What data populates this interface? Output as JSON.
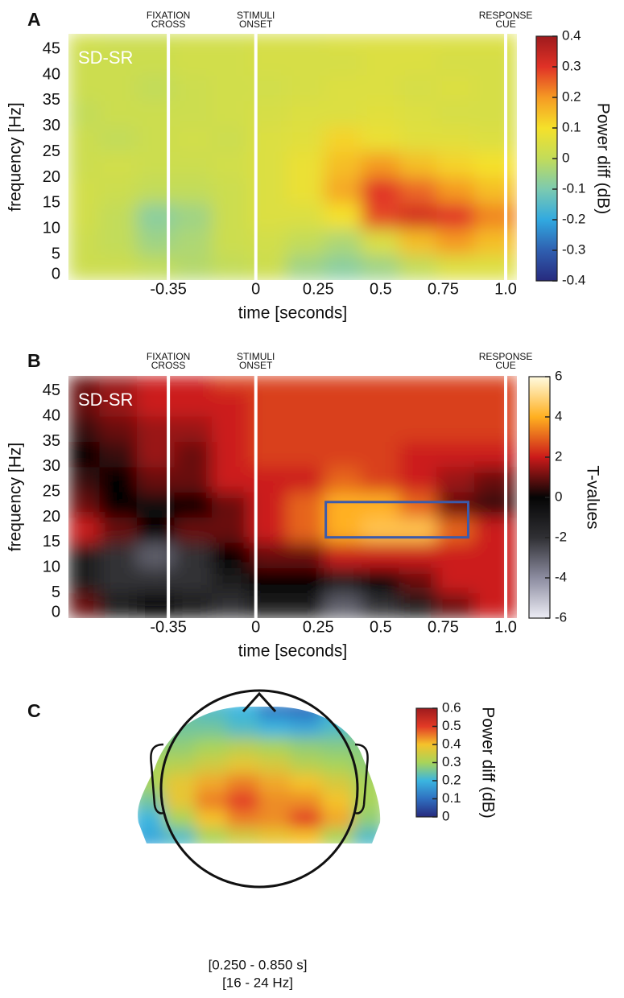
{
  "chart_data": [
    {
      "type": "heatmap",
      "panel": "A",
      "subtitle": "SD-SR",
      "xlabel": "time [seconds]",
      "ylabel": "frequency [Hz]",
      "xlim": [
        -0.75,
        1.045
      ],
      "ylim": [
        0,
        48
      ],
      "xticks": [
        -0.35,
        0,
        0.25,
        0.5,
        0.75,
        {
          "value": 1,
          "label": "1.0"
        }
      ],
      "yticks": [
        0,
        5,
        10,
        15,
        20,
        25,
        30,
        35,
        40,
        45
      ],
      "x": [
        -0.7,
        -0.55,
        -0.4,
        -0.25,
        -0.1,
        0.05,
        0.2,
        0.35,
        0.5,
        0.65,
        0.8,
        0.95
      ],
      "y": [
        2.5,
        7.5,
        12.5,
        17.5,
        22.5,
        27.5,
        32.5,
        37.5,
        42.5,
        47.5
      ],
      "z": [
        [
          0.02,
          0.02,
          0,
          -0.02,
          0,
          0.02,
          -0.05,
          -0.08,
          -0.05,
          0,
          0.05,
          0.05
        ],
        [
          0.02,
          0,
          -0.05,
          -0.03,
          0.02,
          0.03,
          0,
          -0.03,
          0.05,
          0.15,
          0.2,
          0.15
        ],
        [
          0.03,
          0,
          -0.08,
          -0.05,
          0.02,
          0.05,
          0.05,
          0.1,
          0.28,
          0.32,
          0.3,
          0.22
        ],
        [
          0.03,
          0.02,
          0,
          0,
          0.02,
          0.05,
          0.08,
          0.18,
          0.3,
          0.25,
          0.2,
          0.15
        ],
        [
          0.02,
          0.03,
          0.02,
          0.02,
          0.03,
          0.05,
          0.08,
          0.15,
          0.2,
          0.15,
          0.12,
          0.1
        ],
        [
          0.02,
          0,
          0.02,
          0.03,
          0.02,
          0.05,
          0.06,
          0.12,
          0.08,
          0.06,
          0.06,
          0.05
        ],
        [
          0,
          0.02,
          0.02,
          0.02,
          0.03,
          0.04,
          0.05,
          0.05,
          0.06,
          0.05,
          0.04,
          0.04
        ],
        [
          0.02,
          0.02,
          0,
          0.02,
          0.03,
          0.03,
          0.04,
          0.05,
          0.05,
          0.04,
          0.05,
          0.04
        ],
        [
          0.02,
          0.02,
          0.02,
          0.03,
          0.03,
          0.04,
          0.04,
          0.04,
          0.05,
          0.05,
          0.04,
          0.04
        ],
        [
          0.03,
          0.02,
          0.02,
          0.03,
          0.03,
          0.04,
          0.04,
          0.05,
          0.05,
          0.05,
          0.05,
          0.05
        ]
      ],
      "events": [
        {
          "x": -0.35,
          "label": [
            "FIXATION",
            "CROSS"
          ]
        },
        {
          "x": 0,
          "label": [
            "STIMULI",
            "ONSET"
          ]
        },
        {
          "x": 1,
          "label": [
            "RESPONSE",
            "CUE"
          ]
        }
      ],
      "colorbar": {
        "label": "Power diff (dB)",
        "clim": [
          -0.4,
          0.4
        ],
        "ticks": [
          -0.4,
          -0.3,
          -0.2,
          -0.1,
          0,
          0.1,
          0.2,
          0.3,
          0.4
        ],
        "colors": [
          "#272a7e",
          "#2f5fb0",
          "#31a9e0",
          "#7ccab0",
          "#c2dc5a",
          "#f5e12a",
          "#f59a24",
          "#e03226",
          "#9e1a1d"
        ]
      }
    },
    {
      "type": "heatmap",
      "panel": "B",
      "subtitle": "SD-SR",
      "xlabel": "time [seconds]",
      "ylabel": "frequency [Hz]",
      "xlim": [
        -0.75,
        1.045
      ],
      "ylim": [
        0,
        48
      ],
      "xticks": [
        -0.35,
        0,
        0.25,
        0.5,
        0.75,
        {
          "value": 1,
          "label": "1.0"
        }
      ],
      "yticks": [
        0,
        5,
        10,
        15,
        20,
        25,
        30,
        35,
        40,
        45
      ],
      "x": [
        -0.7,
        -0.55,
        -0.4,
        -0.25,
        -0.1,
        0.05,
        0.2,
        0.35,
        0.5,
        0.65,
        0.8,
        0.95
      ],
      "y": [
        2.5,
        7.5,
        12.5,
        17.5,
        22.5,
        27.5,
        32.5,
        37.5,
        42.5,
        47.5
      ],
      "z": [
        [
          1,
          -1,
          0,
          -1,
          -2,
          -1,
          -1,
          -3,
          -2,
          -1,
          1,
          2
        ],
        [
          -1,
          -2,
          -2,
          -2,
          -1,
          0,
          0,
          -1,
          0,
          1,
          2,
          2
        ],
        [
          -1,
          -2,
          -3,
          -2,
          0,
          1,
          1,
          2,
          2,
          2,
          2,
          2
        ],
        [
          2,
          1,
          0,
          1,
          1,
          2,
          3,
          4,
          4.5,
          4.5,
          3,
          2
        ],
        [
          1,
          0,
          -0.5,
          0,
          1,
          2,
          3,
          4,
          4,
          3,
          1,
          0.5
        ],
        [
          0.5,
          0,
          1,
          1,
          2,
          2,
          2,
          3,
          2.5,
          2,
          1.5,
          1
        ],
        [
          0,
          0.5,
          1.5,
          1,
          2,
          2.5,
          2.5,
          2.5,
          2.5,
          2,
          2,
          2
        ],
        [
          0.5,
          1,
          1.5,
          1.5,
          2,
          2.5,
          2.5,
          2.5,
          2.5,
          2.5,
          2.5,
          2.5
        ],
        [
          1,
          1.5,
          2,
          2,
          2,
          2.5,
          2.5,
          2.5,
          2.5,
          2.5,
          2.5,
          2.5
        ],
        [
          1,
          1.5,
          2,
          2,
          2.5,
          2.5,
          2.5,
          2.5,
          2.5,
          2.5,
          2.5,
          2.5
        ]
      ],
      "events": [
        {
          "x": -0.35,
          "label": [
            "FIXATION",
            "CROSS"
          ]
        },
        {
          "x": 0,
          "label": [
            "STIMULI",
            "ONSET"
          ]
        },
        {
          "x": 1,
          "label": [
            "RESPONSE",
            "CUE"
          ]
        }
      ],
      "roi": {
        "x": [
          0.28,
          0.85
        ],
        "y": [
          16,
          23
        ],
        "color": "#3b5bab"
      },
      "colorbar": {
        "label": "T-values",
        "clim": [
          -6,
          6
        ],
        "ticks": [
          -6,
          -4,
          -2,
          0,
          2,
          4,
          6
        ],
        "colors": [
          "#ededf5",
          "#8c8ca0",
          "#303034",
          "#050505",
          "#cc1a1a",
          "#ffb020",
          "#fffbe0"
        ]
      }
    },
    {
      "type": "topomap",
      "panel": "C",
      "values": [
        [
          0.3,
          0.25,
          0.22,
          0.2,
          0.12,
          0.1,
          0.2,
          0.25
        ],
        [
          0.28,
          0.25,
          0.25,
          0.22,
          0.2,
          0.18,
          0.22,
          0.25
        ],
        [
          0.28,
          0.28,
          0.3,
          0.32,
          0.3,
          0.28,
          0.27,
          0.27
        ],
        [
          0.3,
          0.32,
          0.35,
          0.38,
          0.36,
          0.32,
          0.3,
          0.28
        ],
        [
          0.3,
          0.38,
          0.42,
          0.45,
          0.42,
          0.4,
          0.36,
          0.3
        ],
        [
          0.25,
          0.38,
          0.45,
          0.5,
          0.44,
          0.44,
          0.4,
          0.3
        ],
        [
          0.2,
          0.3,
          0.4,
          0.45,
          0.44,
          0.5,
          0.42,
          0.28
        ],
        [
          0.18,
          0.22,
          0.3,
          0.35,
          0.38,
          0.4,
          0.3,
          0.22
        ]
      ],
      "annotations": [
        "[0.250 - 0.850 s]",
        "[16 - 24 Hz]"
      ],
      "colorbar": {
        "label": "Power diff (dB)",
        "clim": [
          0,
          0.6
        ],
        "ticks": [
          0,
          0.1,
          0.2,
          0.3,
          0.4,
          0.5,
          0.6
        ],
        "colors": [
          "#272a7e",
          "#2f6fc0",
          "#3bb5e0",
          "#a8d45a",
          "#f5c22a",
          "#e23a26",
          "#9e1a1d"
        ]
      }
    }
  ]
}
